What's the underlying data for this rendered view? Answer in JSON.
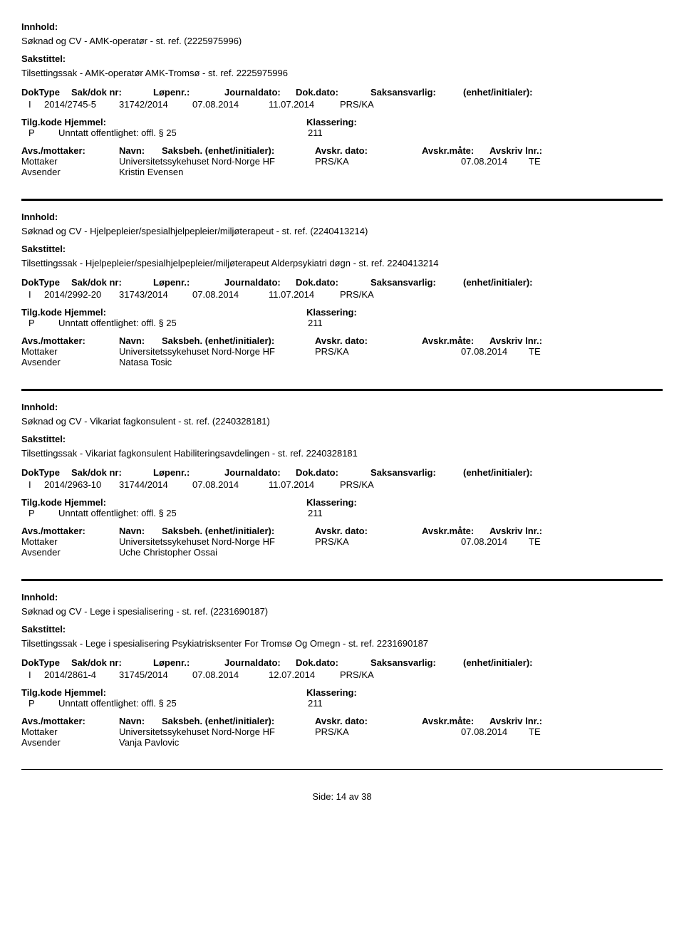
{
  "labels": {
    "innhold": "Innhold:",
    "sakstittel": "Sakstittel:",
    "doktype": "DokType",
    "saknr": "Sak/dok nr:",
    "lopenr": "Løpenr.:",
    "journaldato": "Journaldato:",
    "dokdato": "Dok.dato:",
    "saksansvarlig": "Saksansvarlig:",
    "enhet": "(enhet/initialer):",
    "tilgkode": "Tilg.kode",
    "hjemmel": "Hjemmel:",
    "klassering": "Klassering:",
    "avsmottaker": "Avs./mottaker:",
    "navn": "Navn:",
    "saksbeh": "Saksbeh.",
    "enhet2": "(enhet/initialer):",
    "avskrdato": "Avskr. dato:",
    "avskrmaate": "Avskr.måte:",
    "avskrivlnr": "Avskriv lnr.:",
    "mottaker": "Mottaker",
    "avsender": "Avsender"
  },
  "records": [
    {
      "innhold": "Søknad og CV - AMK-operatør - st. ref. (2225975996)",
      "sakstittel": "Tilsettingssak - AMK-operatør AMK-Tromsø - st. ref. 2225975996",
      "doktype": "I",
      "saknr": "2014/2745-5",
      "lopenr": "31742/2014",
      "journaldato": "07.08.2014",
      "dokdato": "11.07.2014",
      "saksansvarlig": "PRS/KA",
      "p": "P",
      "hjemmel_text": "Unntatt offentlighet: offl. § 25",
      "klass_code": "211",
      "mottaker_navn": "Universitetssykehuset Nord-Norge HF",
      "mottaker_saksbeh": "PRS/KA",
      "mottaker_dato": "07.08.2014",
      "mottaker_maate": "TE",
      "avsender_navn": "Kristin Evensen",
      "show_labels_row2": false
    },
    {
      "innhold": "Søknad og CV - Hjelpepleier/spesialhjelpepleier/miljøterapeut - st. ref. (2240413214)",
      "sakstittel": "Tilsettingssak - Hjelpepleier/spesialhjelpepleier/miljøterapeut Alderpsykiatri døgn - st. ref. 2240413214",
      "doktype": "I",
      "saknr": "2014/2992-20",
      "lopenr": "31743/2014",
      "journaldato": "07.08.2014",
      "dokdato": "11.07.2014",
      "saksansvarlig": "PRS/KA",
      "p": "P",
      "hjemmel_text": "Unntatt offentlighet: offl. § 25",
      "klass_code": "211",
      "mottaker_navn": "Universitetssykehuset Nord-Norge HF",
      "mottaker_saksbeh": "PRS/KA",
      "mottaker_dato": "07.08.2014",
      "mottaker_maate": "TE",
      "avsender_navn": "Natasa Tosic",
      "show_labels_row2": false
    },
    {
      "innhold": "Søknad og CV - Vikariat fagkonsulent - st. ref. (2240328181)",
      "sakstittel": "Tilsettingssak - Vikariat fagkonsulent Habiliteringsavdelingen - st. ref. 2240328181",
      "doktype": "I",
      "saknr": "2014/2963-10",
      "lopenr": "31744/2014",
      "journaldato": "07.08.2014",
      "dokdato": "11.07.2014",
      "saksansvarlig": "PRS/KA",
      "p": "P",
      "hjemmel_text": "Unntatt offentlighet: offl. § 25",
      "klass_code": "211",
      "mottaker_navn": "Universitetssykehuset Nord-Norge HF",
      "mottaker_saksbeh": "PRS/KA",
      "mottaker_dato": "07.08.2014",
      "mottaker_maate": "TE",
      "avsender_navn": "Uche Christopher Ossai",
      "show_labels_row2": true
    },
    {
      "innhold": "Søknad og CV - Lege i spesialisering - st. ref. (2231690187)",
      "sakstittel": "Tilsettingssak - Lege i spesialisering Psykiatrisksenter For Tromsø Og Omegn - st. ref. 2231690187",
      "doktype": "I",
      "saknr": "2014/2861-4",
      "lopenr": "31745/2014",
      "journaldato": "07.08.2014",
      "dokdato": "12.07.2014",
      "saksansvarlig": "PRS/KA",
      "p": "P",
      "hjemmel_text": "Unntatt offentlighet: offl. § 25",
      "klass_code": "211",
      "mottaker_navn": "Universitetssykehuset Nord-Norge HF",
      "mottaker_saksbeh": "PRS/KA",
      "mottaker_dato": "07.08.2014",
      "mottaker_maate": "TE",
      "avsender_navn": "Vanja Pavlovic",
      "show_labels_row2": true
    }
  ],
  "footer": {
    "side": "Side:",
    "page": "14",
    "av": "av",
    "total": "38"
  }
}
